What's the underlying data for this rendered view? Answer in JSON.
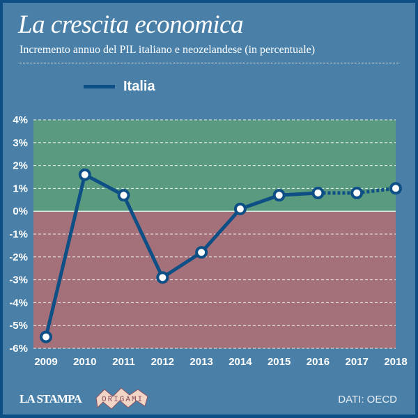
{
  "title": "La crescita economica",
  "subtitle": "Incremento annuo del PIL italiano e neozelandese (in percentuale)",
  "logo": "LA STAMPA",
  "logo2": "ORIGAMI",
  "source": "DATI: OECD",
  "colors": {
    "line": "#0e4f86",
    "positive_area": "#5a9a7f",
    "negative_area": "#a47079",
    "background": "#4a80a8"
  },
  "chart_data": {
    "type": "line",
    "title": "La crescita economica",
    "subtitle": "Incremento annuo del PIL italiano e neozelandese (in percentuale)",
    "categories": [
      "2009",
      "2010",
      "2011",
      "2012",
      "2013",
      "2014",
      "2015",
      "2016",
      "2017",
      "2018"
    ],
    "series": [
      {
        "name": "Italia",
        "values": [
          -5.5,
          1.6,
          0.7,
          -2.9,
          -1.8,
          0.1,
          0.7,
          0.8,
          0.8,
          1.0
        ],
        "dashed_from": "2016"
      }
    ],
    "y_ticks": [
      "-6%",
      "-5%",
      "-4%",
      "-3%",
      "-2%",
      "-1%",
      "0%",
      "1%",
      "2%",
      "3%",
      "4%"
    ],
    "ylim": [
      -6,
      4
    ],
    "grid": true,
    "legend": "top-left"
  }
}
